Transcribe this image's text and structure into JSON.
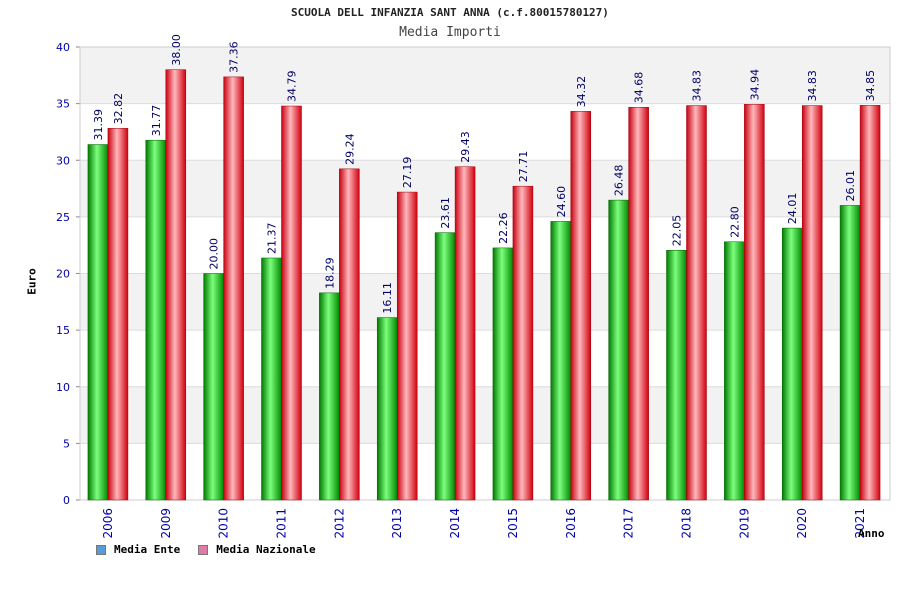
{
  "chart_data": {
    "type": "bar",
    "title": "SCUOLA DELL INFANZIA SANT ANNA (c.f.80015780127)",
    "subtitle": "Media Importi",
    "xlabel": "Anno",
    "ylabel": "Euro",
    "ylim": [
      0,
      40
    ],
    "yticks": [
      0,
      5,
      10,
      15,
      20,
      25,
      30,
      35,
      40
    ],
    "grid": true,
    "legend_position": "bottom-left",
    "categories": [
      "2006",
      "2009",
      "2010",
      "2011",
      "2012",
      "2013",
      "2014",
      "2015",
      "2016",
      "2017",
      "2018",
      "2019",
      "2020",
      "2021"
    ],
    "series": [
      {
        "name": "Media Ente",
        "color": "#00b400",
        "legend_color": "#5b9bd5",
        "values": [
          31.39,
          31.77,
          20.0,
          21.37,
          18.29,
          16.11,
          23.61,
          22.26,
          24.6,
          26.48,
          22.05,
          22.8,
          24.01,
          26.01
        ],
        "labels": [
          "31.39",
          "31.77",
          "20.00",
          "21.37",
          "18.29",
          "16.11",
          "23.61",
          "22.26",
          "24.60",
          "26.48",
          "22.05",
          "22.80",
          "24.01",
          "26.01"
        ]
      },
      {
        "name": "Media Nazionale",
        "color": "#e8141e",
        "legend_color": "#e07ba8",
        "values": [
          32.82,
          38.0,
          37.36,
          34.79,
          29.24,
          27.19,
          29.43,
          27.71,
          34.32,
          34.68,
          34.83,
          34.94,
          34.83,
          34.85
        ],
        "labels": [
          "32.82",
          "38.00",
          "37.36",
          "34.79",
          "29.24",
          "27.19",
          "29.43",
          "27.71",
          "34.32",
          "34.68",
          "34.83",
          "34.94",
          "34.83",
          "34.85"
        ]
      }
    ]
  }
}
